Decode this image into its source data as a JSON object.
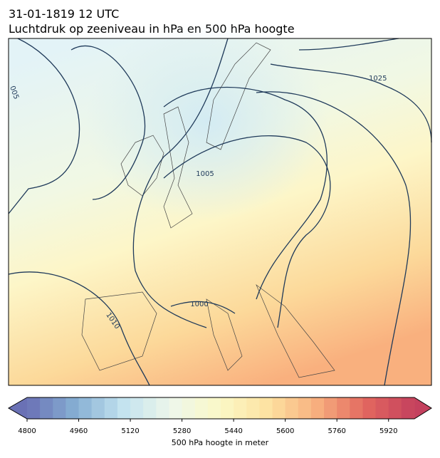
{
  "header": {
    "date": "31-01-1819 12 UTC",
    "title": "Luchtdruk op zeeniveau in hPa en 500 hPa hoogte"
  },
  "contour_labels": [
    "1025",
    "1005",
    "1000",
    "1010",
    "005"
  ],
  "colorbar": {
    "label": "500 hPa hoogte in meter",
    "range": [
      4800,
      6000
    ],
    "step": 40,
    "ticks": [
      4800,
      4960,
      5120,
      5280,
      5440,
      5600,
      5760,
      5920
    ],
    "colormap": [
      "#6a71b5",
      "#86afd3",
      "#c4e3ef",
      "#eef7ea",
      "#fbf8c6",
      "#fde1a0",
      "#f7ae7e",
      "#e2675f",
      "#c4415e"
    ]
  }
}
